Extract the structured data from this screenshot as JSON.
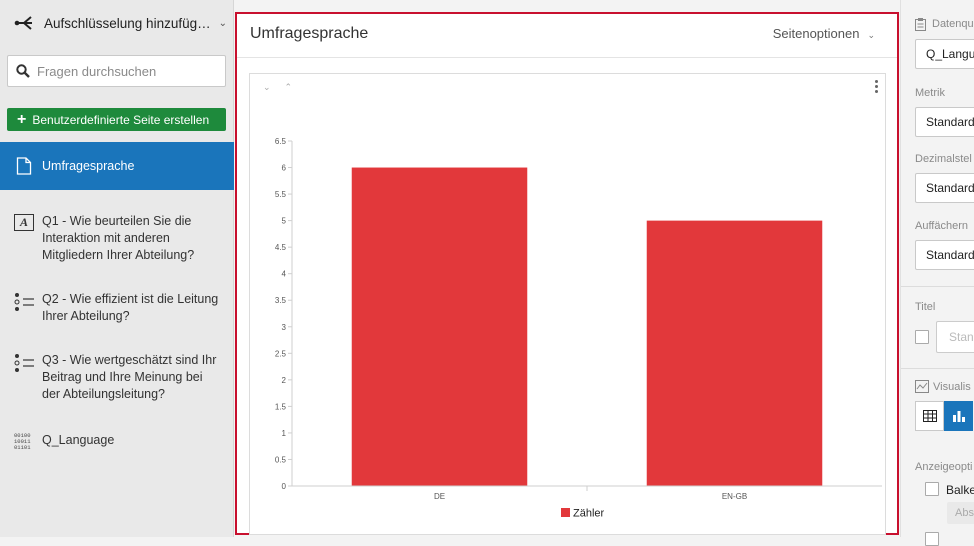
{
  "sidebar": {
    "breakdown_label": "Aufschlüsselung hinzufüg…",
    "search_placeholder": "Fragen durchsuchen",
    "create_button": "Benutzerdefinierte Seite erstellen",
    "active_item": "Umfragesprache",
    "items": [
      {
        "label": "Q1 - Wie beurteilen Sie die Interaktion mit anderen Mitgliedern Ihrer Abteilung?",
        "icon": "text-entry-icon"
      },
      {
        "label": "Q2 - Wie effizient ist die Leitung Ihrer Abteilung?",
        "icon": "multiple-choice-icon"
      },
      {
        "label": "Q3 - Wie wertgeschätzt sind Ihr Beitrag und Ihre Meinung bei der Abteilungsleitung?",
        "icon": "multiple-choice-icon"
      },
      {
        "label": "Q_Language",
        "icon": "binary-data-icon"
      }
    ]
  },
  "main": {
    "title": "Umfragesprache",
    "page_options": "Seitenoptionen"
  },
  "chart_data": {
    "type": "bar",
    "categories": [
      "DE",
      "EN-GB"
    ],
    "series": [
      {
        "name": "Zähler",
        "values": [
          6,
          5
        ],
        "color": "#e2383b"
      }
    ],
    "ylim": [
      0,
      6.5
    ],
    "yticks": [
      "0",
      "0.5",
      "1",
      "1.5",
      "2",
      "2.5",
      "3",
      "3.5",
      "4",
      "4.5",
      "5",
      "5.5",
      "6",
      "6.5"
    ],
    "legend": "bottom-center",
    "grid": false
  },
  "right_panel": {
    "data_source_label": "Datenqu",
    "data_source_value": "Q_Langu",
    "metric_label": "Metrik",
    "metric_value": "Standard",
    "decimals_label": "Dezimalstel",
    "decimals_value": "Standard",
    "fan_label": "Auffächern",
    "fan_value": "Standard",
    "title_label": "Titel",
    "title_placeholder": "Stan",
    "viz_label": "Visualis",
    "display_label": "Anzeigeopti",
    "bar_option": "Balke",
    "abs_label": "Abs"
  }
}
